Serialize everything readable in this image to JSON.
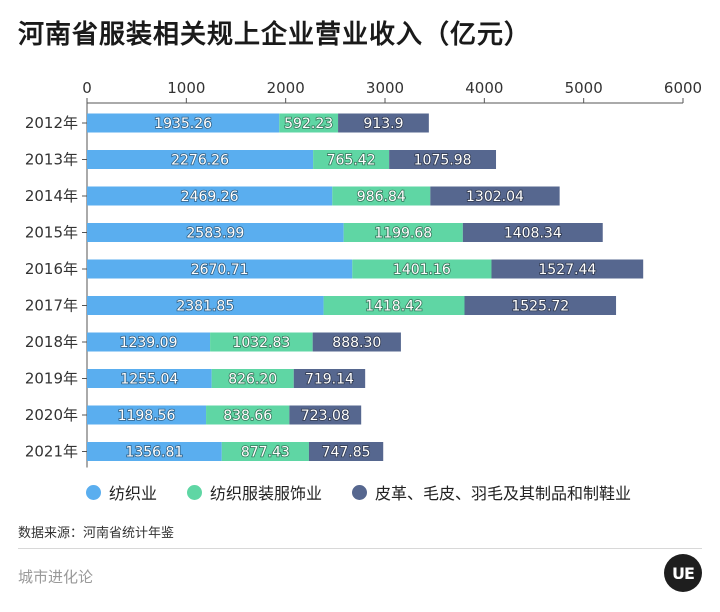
{
  "title": "河南省服装相关规上企业营业收入（亿元）",
  "source": "数据来源：河南省统计年鉴",
  "brand": "城市进化论",
  "logo_text": "UE",
  "chart_data": {
    "type": "bar",
    "orientation": "horizontal",
    "stacked": true,
    "title": "河南省服装相关规上企业营业收入（亿元）",
    "xlim": [
      0,
      6000
    ],
    "xticks": [
      0,
      1000,
      2000,
      3000,
      4000,
      5000,
      6000
    ],
    "xtick_labels": [
      "0",
      "1000",
      "2000",
      "3000",
      "4000",
      "5000",
      "6000"
    ],
    "xaxis_position": "top",
    "grid": false,
    "legend_position": "bottom",
    "categories": [
      "2012年",
      "2013年",
      "2014年",
      "2015年",
      "2016年",
      "2017年",
      "2018年",
      "2019年",
      "2020年",
      "2021年"
    ],
    "series": [
      {
        "name": "纺织业",
        "color": "#5aaeef",
        "values": [
          1935.26,
          2276.26,
          2469.26,
          2583.99,
          2670.71,
          2381.85,
          1239.09,
          1255.04,
          1198.56,
          1356.81
        ],
        "labels": [
          "1935.26",
          "2276.26",
          "2469.26",
          "2583.99",
          "2670.71",
          "2381.85",
          "1239.09",
          "1255.04",
          "1198.56",
          "1356.81"
        ]
      },
      {
        "name": "纺织服装服饰业",
        "color": "#5fd6a4",
        "values": [
          592.23,
          765.42,
          986.84,
          1199.68,
          1401.16,
          1418.42,
          1032.83,
          826.2,
          838.66,
          877.43
        ],
        "labels": [
          "592.23",
          "765.42",
          "986.84",
          "1199.68",
          "1401.16",
          "1418.42",
          "1032.83",
          "826.20",
          "838.66",
          "877.43"
        ]
      },
      {
        "name": "皮革、毛皮、羽毛及其制品和制鞋业",
        "color": "#56678f",
        "values": [
          913.9,
          1075.98,
          1302.04,
          1408.34,
          1527.44,
          1525.72,
          888.3,
          719.14,
          723.08,
          747.85
        ],
        "labels": [
          "913.9",
          "1075.98",
          "1302.04",
          "1408.34",
          "1527.44",
          "1525.72",
          "888.30",
          "719.14",
          "723.08",
          "747.85"
        ]
      }
    ]
  }
}
